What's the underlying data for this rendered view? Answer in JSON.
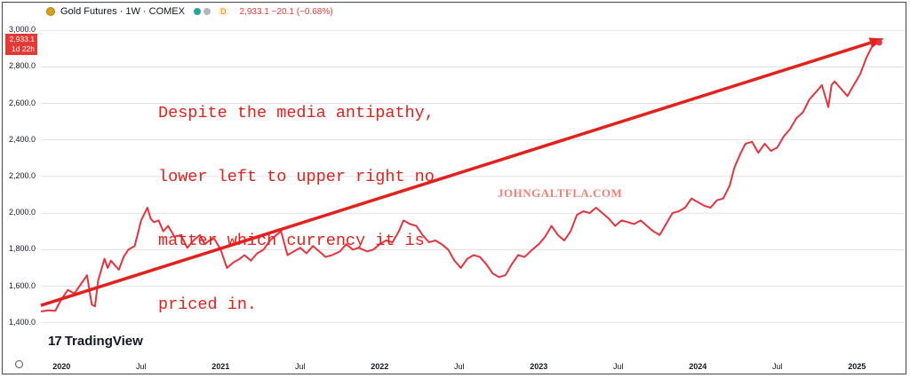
{
  "header": {
    "title": "Gold Futures · 1W · COMEX",
    "badge": "D",
    "quote": "2,933.1 −20.1 (−0.68%)"
  },
  "price_tag": {
    "price": "2,933.1",
    "countdown": "1d 22h"
  },
  "annotation_lines": [
    "Despite the media antipathy,",
    "lower left to upper right no",
    "matter which currency it is",
    "priced in."
  ],
  "watermark": "JOHNGALTFLA.COM",
  "logo": {
    "mark": "17",
    "text": "TradingView"
  },
  "colors": {
    "line": "#e3343f",
    "arrow": "#e3201b",
    "tag": "#e53935",
    "grid": "#d0d0d0"
  },
  "chart_data": {
    "type": "line",
    "title": "Gold Futures · 1W · COMEX",
    "xlabel": "",
    "ylabel": "",
    "ylim": [
      1360,
      3020
    ],
    "xlim": [
      2019.87,
      2025.3
    ],
    "grid": true,
    "y_ticks": [
      "1,400.0",
      "1,600.0",
      "1,800.0",
      "2,000.0",
      "2,200.0",
      "2,400.0",
      "2,600.0",
      "2,800.0",
      "3,000.0"
    ],
    "x_ticks": [
      {
        "label": "2020",
        "x": 2020.0,
        "year": true
      },
      {
        "label": "Jul",
        "x": 2020.5,
        "year": false
      },
      {
        "label": "2021",
        "x": 2021.0,
        "year": true
      },
      {
        "label": "Jul",
        "x": 2021.5,
        "year": false
      },
      {
        "label": "2022",
        "x": 2022.0,
        "year": true
      },
      {
        "label": "Jul",
        "x": 2022.5,
        "year": false
      },
      {
        "label": "2023",
        "x": 2023.0,
        "year": true
      },
      {
        "label": "Jul",
        "x": 2023.5,
        "year": false
      },
      {
        "label": "2024",
        "x": 2024.0,
        "year": true
      },
      {
        "label": "Jul",
        "x": 2024.5,
        "year": false
      },
      {
        "label": "2025",
        "x": 2025.0,
        "year": true
      }
    ],
    "series": [
      {
        "name": "",
        "x": [
          2019.87,
          2019.92,
          2019.96,
          2020.0,
          2020.04,
          2020.08,
          2020.12,
          2020.16,
          2020.19,
          2020.21,
          2020.23,
          2020.25,
          2020.27,
          2020.29,
          2020.31,
          2020.33,
          2020.36,
          2020.39,
          2020.42,
          2020.46,
          2020.5,
          2020.54,
          2020.56,
          2020.58,
          2020.61,
          2020.64,
          2020.67,
          2020.71,
          2020.75,
          2020.79,
          2020.83,
          2020.87,
          2020.9,
          2020.93,
          2020.96,
          2021.0,
          2021.04,
          2021.08,
          2021.12,
          2021.15,
          2021.19,
          2021.23,
          2021.27,
          2021.31,
          2021.35,
          2021.38,
          2021.42,
          2021.46,
          2021.5,
          2021.54,
          2021.58,
          2021.62,
          2021.66,
          2021.7,
          2021.75,
          2021.79,
          2021.83,
          2021.87,
          2021.92,
          2021.96,
          2022.0,
          2022.04,
          2022.08,
          2022.12,
          2022.15,
          2022.19,
          2022.23,
          2022.27,
          2022.31,
          2022.35,
          2022.39,
          2022.43,
          2022.47,
          2022.51,
          2022.55,
          2022.59,
          2022.63,
          2022.67,
          2022.71,
          2022.75,
          2022.79,
          2022.83,
          2022.87,
          2022.91,
          2022.96,
          2023.0,
          2023.04,
          2023.08,
          2023.12,
          2023.16,
          2023.2,
          2023.24,
          2023.28,
          2023.32,
          2023.36,
          2023.4,
          2023.44,
          2023.48,
          2023.52,
          2023.56,
          2023.6,
          2023.64,
          2023.68,
          2023.72,
          2023.76,
          2023.8,
          2023.84,
          2023.88,
          2023.92,
          2023.96,
          2024.0,
          2024.04,
          2024.08,
          2024.12,
          2024.16,
          2024.2,
          2024.23,
          2024.27,
          2024.3,
          2024.34,
          2024.38,
          2024.42,
          2024.46,
          2024.5,
          2024.54,
          2024.58,
          2024.62,
          2024.66,
          2024.7,
          2024.74,
          2024.78,
          2024.82,
          2024.84,
          2024.86,
          2024.9,
          2024.94,
          2024.98,
          2025.02,
          2025.06,
          2025.1,
          2025.12,
          2025.14
        ],
        "y": [
          1462,
          1468,
          1465,
          1530,
          1580,
          1560,
          1610,
          1660,
          1500,
          1490,
          1630,
          1690,
          1750,
          1700,
          1740,
          1720,
          1690,
          1760,
          1800,
          1820,
          1960,
          2030,
          1970,
          1950,
          1960,
          1900,
          1930,
          1870,
          1880,
          1810,
          1850,
          1880,
          1830,
          1850,
          1860,
          1800,
          1700,
          1730,
          1750,
          1770,
          1740,
          1780,
          1800,
          1850,
          1880,
          1900,
          1770,
          1790,
          1810,
          1780,
          1820,
          1790,
          1760,
          1770,
          1790,
          1830,
          1800,
          1810,
          1790,
          1800,
          1830,
          1850,
          1840,
          1900,
          1960,
          1940,
          1930,
          1880,
          1840,
          1850,
          1830,
          1800,
          1740,
          1700,
          1750,
          1770,
          1760,
          1720,
          1670,
          1650,
          1660,
          1720,
          1770,
          1760,
          1800,
          1830,
          1870,
          1930,
          1880,
          1850,
          1900,
          1990,
          2010,
          2000,
          2030,
          2000,
          1970,
          1930,
          1960,
          1950,
          1940,
          1960,
          1930,
          1900,
          1880,
          1940,
          2000,
          2010,
          2030,
          2080,
          2060,
          2040,
          2030,
          2070,
          2080,
          2150,
          2250,
          2330,
          2380,
          2390,
          2330,
          2380,
          2340,
          2360,
          2420,
          2460,
          2520,
          2550,
          2620,
          2660,
          2700,
          2580,
          2700,
          2720,
          2680,
          2640,
          2700,
          2760,
          2850,
          2920,
          2950,
          2933
        ]
      }
    ],
    "trend_arrow": {
      "from": {
        "x": 2019.87,
        "y": 1495
      },
      "to": {
        "x": 2025.17,
        "y": 2955
      }
    }
  }
}
